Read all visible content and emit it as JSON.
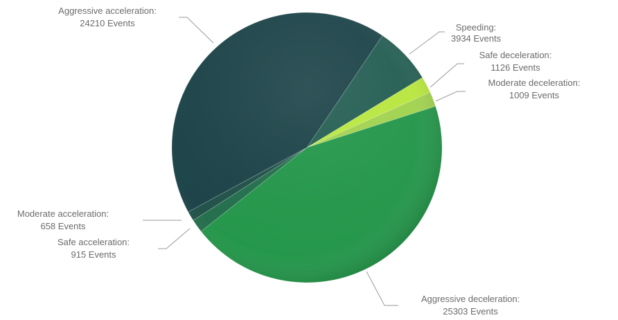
{
  "chart_data": {
    "type": "pie",
    "unit_label": "Events",
    "slices": [
      {
        "name": "Speeding",
        "value": 3934,
        "color": "#1f5a4e"
      },
      {
        "name": "Safe deceleration",
        "value": 1126,
        "color": "#b7e63a"
      },
      {
        "name": "Moderate deceleration",
        "value": 1009,
        "color": "#9fd14a"
      },
      {
        "name": "Aggressive deceleration",
        "value": 25303,
        "color": "#1f9446"
      },
      {
        "name": "Safe acceleration",
        "value": 915,
        "color": "#1f6b49"
      },
      {
        "name": "Moderate acceleration",
        "value": 658,
        "color": "#1c4d45"
      },
      {
        "name": "Aggressive acceleration",
        "value": 24210,
        "color": "#173f44"
      }
    ],
    "labels": [
      {
        "name_text": "Speeding:",
        "value_text": "3934 Events"
      },
      {
        "name_text": "Safe deceleration:",
        "value_text": "1126 Events"
      },
      {
        "name_text": "Moderate deceleration:",
        "value_text": "1009 Events"
      },
      {
        "name_text": "Aggressive deceleration:",
        "value_text": "25303 Events"
      },
      {
        "name_text": "Safe acceleration:",
        "value_text": "915 Events"
      },
      {
        "name_text": "Moderate acceleration:",
        "value_text": "658 Events"
      },
      {
        "name_text": "Aggressive acceleration:",
        "value_text": "24210 Events"
      }
    ],
    "legend": "none"
  }
}
